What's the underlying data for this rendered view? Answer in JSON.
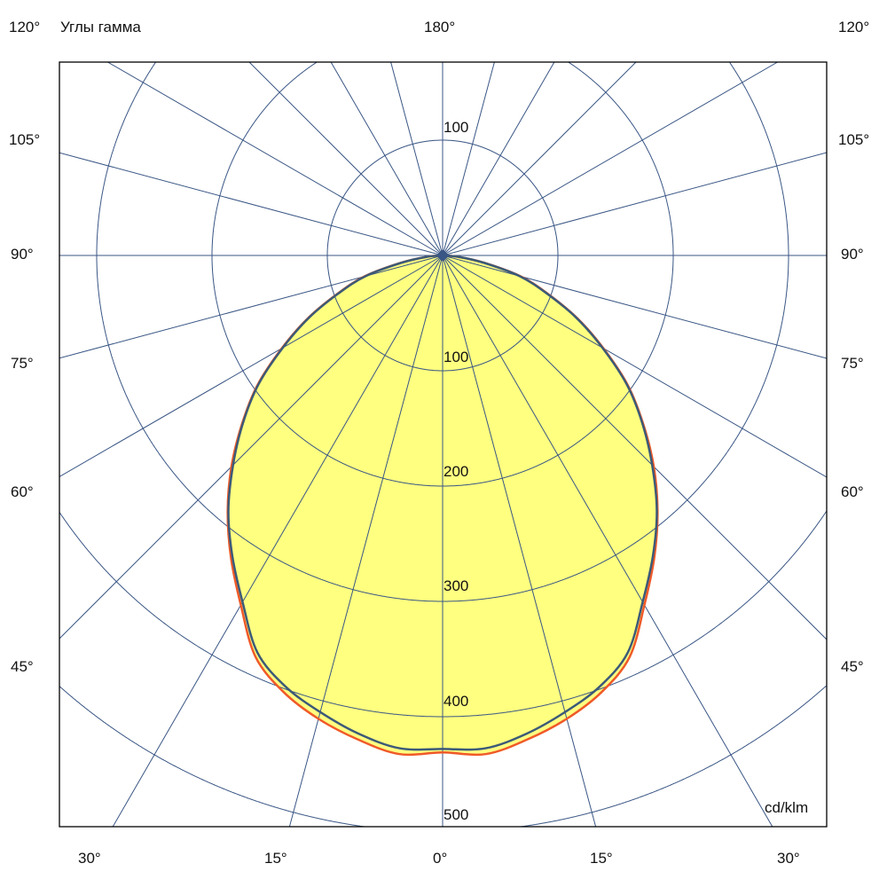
{
  "chart_data": {
    "type": "polar",
    "title": "Углы гамма",
    "unit_label": "cd/klm",
    "top_label": "180°",
    "left_angle_labels": [
      "120°",
      "105°",
      "90°",
      "75°",
      "60°",
      "45°"
    ],
    "right_angle_labels": [
      "120°",
      "105°",
      "90°",
      "75°",
      "60°",
      "45°"
    ],
    "bottom_angle_labels": [
      "30°",
      "15°",
      "0°",
      "15°",
      "30°"
    ],
    "radial_tick_top": "100",
    "radial_ticks": [
      "100",
      "200",
      "300",
      "400",
      "500"
    ],
    "radial_max": 500,
    "angular_grid_step_deg": 15,
    "radial_grid_step": 100,
    "fill_color": "#FFFF80",
    "grid_color": "#3A5685",
    "gamma_deg": [
      0,
      5,
      10,
      15,
      20,
      25,
      30,
      35,
      40,
      45,
      50,
      55,
      60,
      65,
      70,
      75,
      80,
      85,
      90
    ],
    "series": [
      {
        "color": "#F05A28",
        "values": [
          431,
          434,
          426,
          416,
          403,
          384,
          350,
          320,
          290,
          259,
          227,
          196,
          161,
          129,
          97,
          70,
          37,
          14,
          0
        ]
      },
      {
        "color": "#3C5A78",
        "values": [
          428,
          429,
          421,
          410,
          398,
          380,
          347,
          318,
          289,
          257,
          226,
          195,
          160,
          128,
          96,
          69,
          36,
          14,
          0
        ]
      }
    ]
  }
}
